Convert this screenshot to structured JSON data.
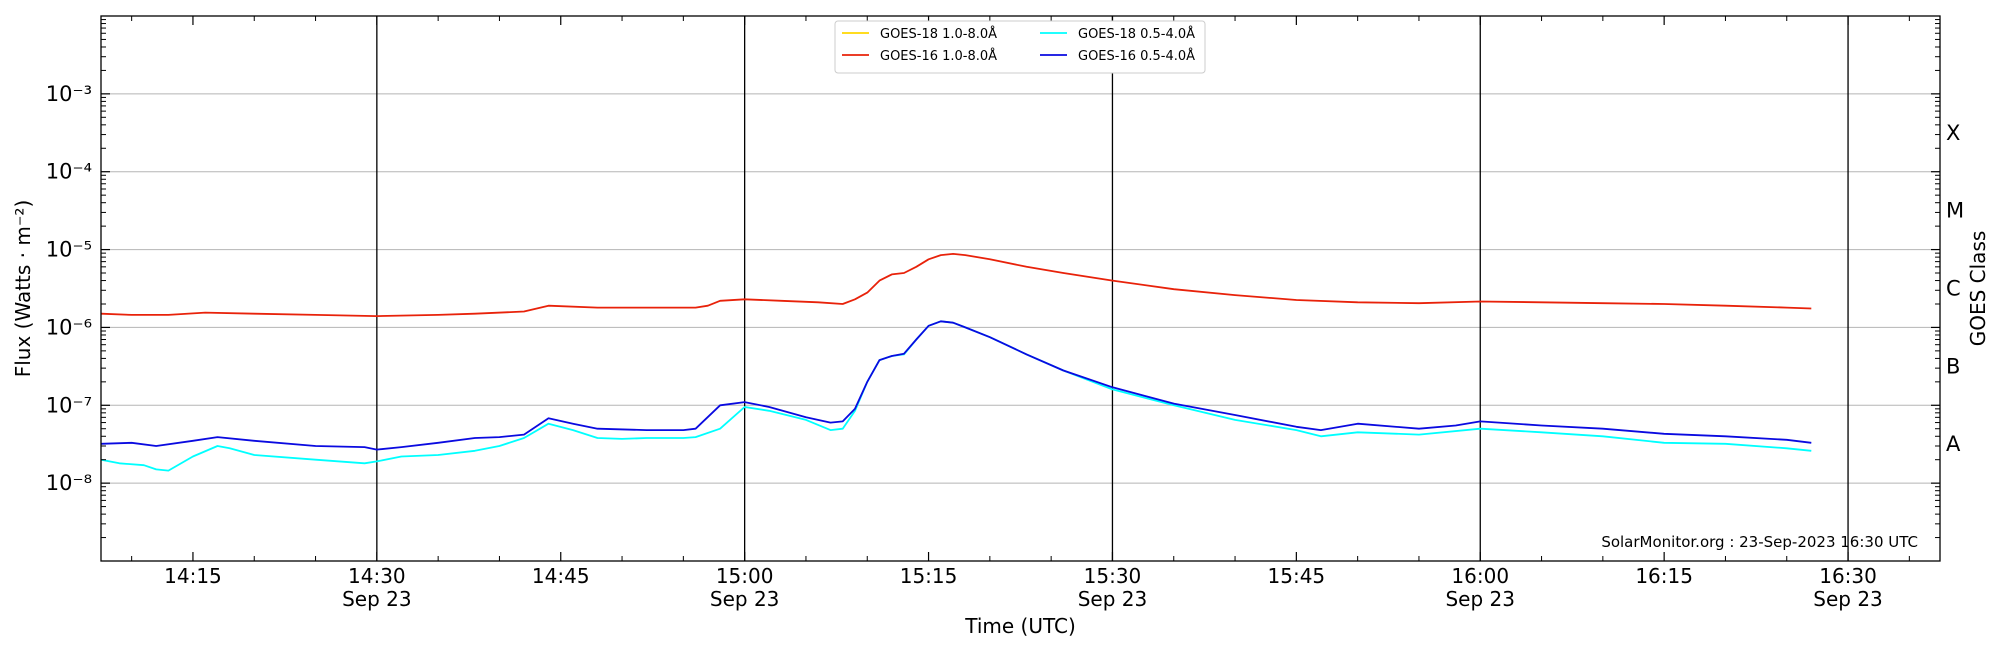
{
  "chart_data": {
    "type": "line",
    "xlabel": "Time (UTC)",
    "ylabel": "Flux (Watts · m⁻²)",
    "ylabel_right": "GOES Class",
    "credit": "SolarMonitor.org : 23-Sep-2023 16:30 UTC",
    "xlim": [
      "14:07:30",
      "16:37:30"
    ],
    "ylim": [
      1e-09,
      0.01
    ],
    "yscale": "log",
    "y_tick_values": [
      1e-08,
      1e-07,
      1e-06,
      1e-05,
      0.0001,
      0.001
    ],
    "y_tick_labels": [
      "10⁻⁸",
      "10⁻⁷",
      "10⁻⁶",
      "10⁻⁵",
      "10⁻⁴",
      "10⁻³"
    ],
    "x_ticks": [
      {
        "time": "14:15",
        "label": "14:15",
        "sublabel": ""
      },
      {
        "time": "14:30",
        "label": "14:30",
        "sublabel": "Sep 23"
      },
      {
        "time": "14:45",
        "label": "14:45",
        "sublabel": ""
      },
      {
        "time": "15:00",
        "label": "15:00",
        "sublabel": "Sep 23"
      },
      {
        "time": "15:15",
        "label": "15:15",
        "sublabel": ""
      },
      {
        "time": "15:30",
        "label": "15:30",
        "sublabel": "Sep 23"
      },
      {
        "time": "15:45",
        "label": "15:45",
        "sublabel": ""
      },
      {
        "time": "16:00",
        "label": "16:00",
        "sublabel": "Sep 23"
      },
      {
        "time": "16:15",
        "label": "16:15",
        "sublabel": ""
      },
      {
        "time": "16:30",
        "label": "16:30",
        "sublabel": "Sep 23"
      }
    ],
    "vertical_lines": [
      "14:30",
      "15:00",
      "15:30",
      "16:00",
      "16:30"
    ],
    "goes_classes": [
      {
        "label": "X",
        "flux": 0.0001
      },
      {
        "label": "M",
        "flux": 1e-05
      },
      {
        "label": "C",
        "flux": 1e-06
      },
      {
        "label": "B",
        "flux": 1e-07
      },
      {
        "label": "A",
        "flux": 1e-08
      }
    ],
    "grid": "horizontal",
    "legend_position": "top-center",
    "series": [
      {
        "name": "GOES-18 1.0-8.0Å",
        "color": "#FFD700",
        "x": [],
        "y": []
      },
      {
        "name": "GOES-16 1.0-8.0Å",
        "color": "#E8220A",
        "x": [
          "14:07:30",
          "14:10",
          "14:13",
          "14:16",
          "14:20",
          "14:25",
          "14:30",
          "14:35",
          "14:38",
          "14:42",
          "14:44",
          "14:48",
          "14:52",
          "14:56",
          "14:57",
          "14:58",
          "15:00",
          "15:03",
          "15:06",
          "15:08",
          "15:09",
          "15:10",
          "15:11",
          "15:12",
          "15:13",
          "15:14",
          "15:15",
          "15:16",
          "15:17",
          "15:18",
          "15:20",
          "15:23",
          "15:26",
          "15:30",
          "15:35",
          "15:40",
          "15:45",
          "15:50",
          "15:55",
          "16:00",
          "16:05",
          "16:10",
          "16:15",
          "16:20",
          "16:25",
          "16:27"
        ],
        "y": [
          1.5e-06,
          1.45e-06,
          1.45e-06,
          1.55e-06,
          1.5e-06,
          1.45e-06,
          1.4e-06,
          1.45e-06,
          1.5e-06,
          1.6e-06,
          1.9e-06,
          1.8e-06,
          1.8e-06,
          1.8e-06,
          1.9e-06,
          2.2e-06,
          2.3e-06,
          2.2e-06,
          2.1e-06,
          2e-06,
          2.3e-06,
          2.8e-06,
          4e-06,
          4.8e-06,
          5e-06,
          6e-06,
          7.5e-06,
          8.5e-06,
          8.8e-06,
          8.5e-06,
          7.5e-06,
          6e-06,
          5e-06,
          4e-06,
          3.1e-06,
          2.6e-06,
          2.25e-06,
          2.1e-06,
          2.05e-06,
          2.15e-06,
          2.1e-06,
          2.05e-06,
          2e-06,
          1.9e-06,
          1.8e-06,
          1.75e-06
        ]
      },
      {
        "name": "GOES-18 0.5-4.0Å",
        "color": "#00FFFF",
        "x": [
          "14:07:30",
          "14:09",
          "14:11",
          "14:12",
          "14:13",
          "14:15",
          "14:17",
          "14:18",
          "14:20",
          "14:25",
          "14:29",
          "14:30",
          "14:32",
          "14:35",
          "14:38",
          "14:40",
          "14:42",
          "14:44",
          "14:46",
          "14:48",
          "14:50",
          "14:52",
          "14:55",
          "14:56",
          "14:58",
          "15:00",
          "15:02",
          "15:05",
          "15:07",
          "15:08",
          "15:09",
          "15:10",
          "15:11",
          "15:12",
          "15:13",
          "15:14",
          "15:15",
          "15:16",
          "15:17",
          "15:18",
          "15:20",
          "15:23",
          "15:26",
          "15:30",
          "15:35",
          "15:40",
          "15:45",
          "15:47",
          "15:50",
          "15:55",
          "16:00",
          "16:05",
          "16:10",
          "16:15",
          "16:20",
          "16:25",
          "16:27"
        ],
        "y": [
          2e-08,
          1.8e-08,
          1.7e-08,
          1.5e-08,
          1.45e-08,
          2.2e-08,
          3e-08,
          2.8e-08,
          2.3e-08,
          2e-08,
          1.8e-08,
          1.9e-08,
          2.2e-08,
          2.3e-08,
          2.6e-08,
          3e-08,
          3.8e-08,
          5.8e-08,
          4.8e-08,
          3.8e-08,
          3.7e-08,
          3.8e-08,
          3.8e-08,
          3.9e-08,
          5e-08,
          9.5e-08,
          8.5e-08,
          6.5e-08,
          4.8e-08,
          5e-08,
          8.5e-08,
          2e-07,
          3.8e-07,
          4.3e-07,
          4.5e-07,
          7e-07,
          1.05e-06,
          1.2e-06,
          1.15e-06,
          1e-06,
          7.5e-07,
          4.5e-07,
          2.8e-07,
          1.6e-07,
          1e-07,
          6.5e-08,
          4.8e-08,
          4e-08,
          4.5e-08,
          4.2e-08,
          5e-08,
          4.5e-08,
          4e-08,
          3.3e-08,
          3.2e-08,
          2.8e-08,
          2.6e-08
        ]
      },
      {
        "name": "GOES-16 0.5-4.0Å",
        "color": "#0A0AE0",
        "x": [
          "14:07:30",
          "14:10",
          "14:12",
          "14:15",
          "14:17",
          "14:20",
          "14:25",
          "14:29",
          "14:30",
          "14:32",
          "14:35",
          "14:38",
          "14:40",
          "14:42",
          "14:44",
          "14:46",
          "14:48",
          "14:52",
          "14:55",
          "14:56",
          "14:58",
          "15:00",
          "15:02",
          "15:05",
          "15:07",
          "15:08",
          "15:09",
          "15:10",
          "15:11",
          "15:12",
          "15:13",
          "15:14",
          "15:15",
          "15:16",
          "15:17",
          "15:18",
          "15:20",
          "15:23",
          "15:26",
          "15:30",
          "15:35",
          "15:40",
          "15:45",
          "15:47",
          "15:50",
          "15:55",
          "15:58",
          "16:00",
          "16:05",
          "16:10",
          "16:15",
          "16:20",
          "16:25",
          "16:27"
        ],
        "y": [
          3.2e-08,
          3.3e-08,
          3e-08,
          3.5e-08,
          3.9e-08,
          3.5e-08,
          3e-08,
          2.9e-08,
          2.7e-08,
          2.9e-08,
          3.3e-08,
          3.8e-08,
          3.9e-08,
          4.2e-08,
          6.8e-08,
          5.8e-08,
          5e-08,
          4.8e-08,
          4.8e-08,
          5e-08,
          1e-07,
          1.1e-07,
          9.5e-08,
          7e-08,
          6e-08,
          6.2e-08,
          9e-08,
          2e-07,
          3.8e-07,
          4.3e-07,
          4.6e-07,
          7e-07,
          1.05e-06,
          1.2e-06,
          1.15e-06,
          1e-06,
          7.5e-07,
          4.5e-07,
          2.8e-07,
          1.7e-07,
          1.05e-07,
          7.5e-08,
          5.3e-08,
          4.8e-08,
          5.8e-08,
          5e-08,
          5.5e-08,
          6.2e-08,
          5.5e-08,
          5e-08,
          4.3e-08,
          4e-08,
          3.6e-08,
          3.3e-08
        ]
      }
    ]
  }
}
